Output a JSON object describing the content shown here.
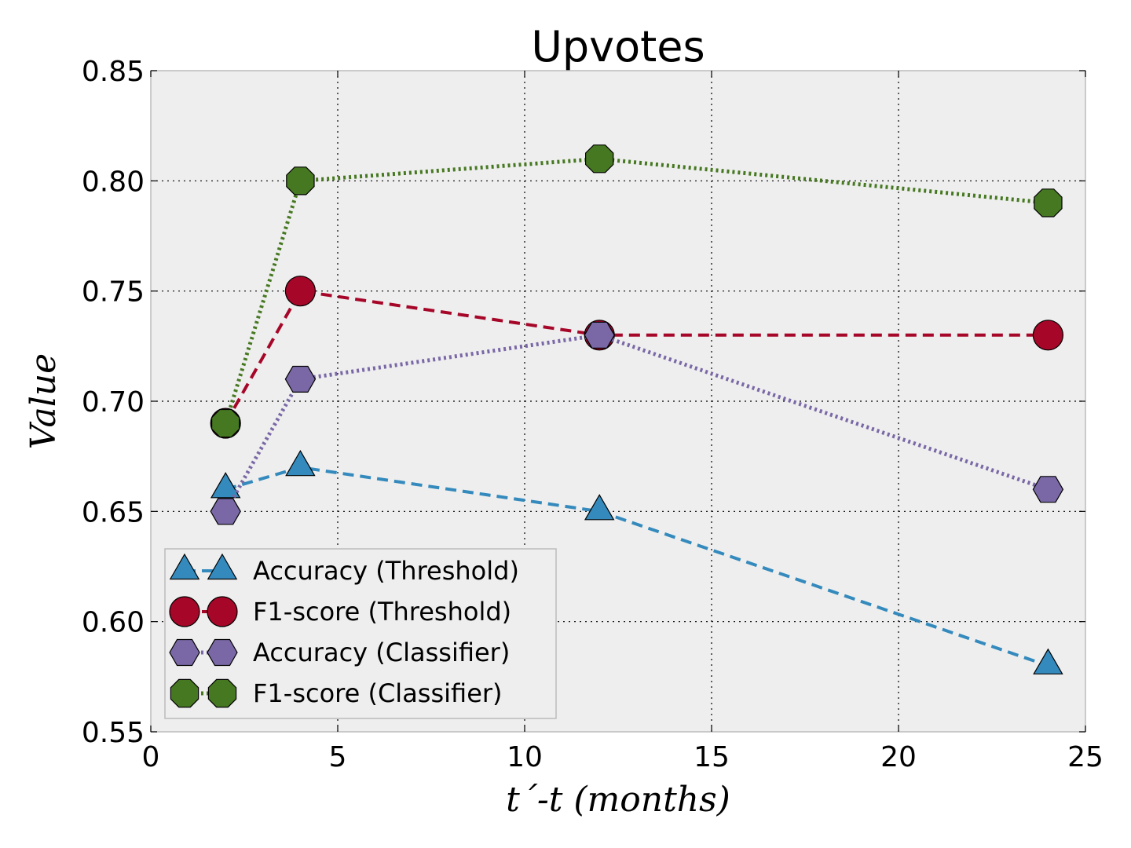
{
  "chart_data": {
    "type": "line",
    "title": "Upvotes",
    "xlabel": "t´-t (months)",
    "ylabel": "Value",
    "xlim": [
      0,
      25
    ],
    "ylim": [
      0.55,
      0.85
    ],
    "xticks": [
      "0",
      "5",
      "10",
      "15",
      "20",
      "25"
    ],
    "yticks": [
      "0.55",
      "0.60",
      "0.65",
      "0.70",
      "0.75",
      "0.80",
      "0.85"
    ],
    "grid": true,
    "legend_position": "lower-left",
    "x": [
      2,
      4,
      12,
      24
    ],
    "series": [
      {
        "name": "Accuracy (Threshold)",
        "values": [
          0.66,
          0.67,
          0.65,
          0.58
        ],
        "color": "#348abd",
        "marker": "triangle",
        "linestyle": "dashed"
      },
      {
        "name": "F1-score (Threshold)",
        "values": [
          0.69,
          0.75,
          0.73,
          0.73
        ],
        "color": "#a60628",
        "marker": "circle",
        "linestyle": "dashed"
      },
      {
        "name": "Accuracy (Classifier)",
        "values": [
          0.65,
          0.71,
          0.73,
          0.66
        ],
        "color": "#7a68a6",
        "marker": "hexagon",
        "linestyle": "dotted"
      },
      {
        "name": "F1-score (Classifier)",
        "values": [
          0.69,
          0.8,
          0.81,
          0.79
        ],
        "color": "#467821",
        "marker": "octagon",
        "linestyle": "dotted"
      }
    ]
  }
}
